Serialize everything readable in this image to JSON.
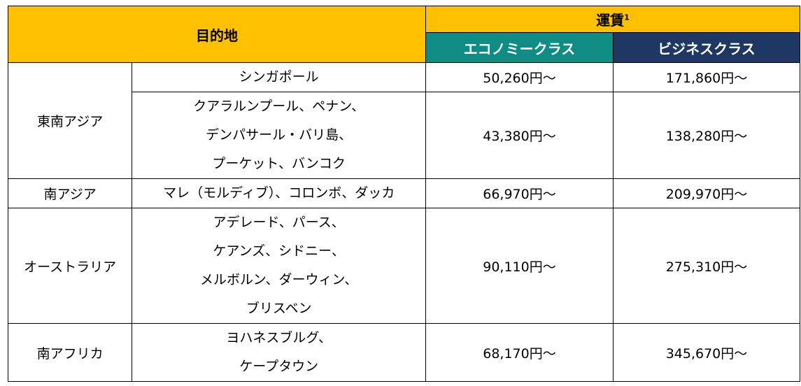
{
  "header": {
    "destination": "目的地",
    "fare": "運賃",
    "fare_note": "1",
    "economy": "エコノミークラス",
    "business": "ビジネスクラス"
  },
  "rows": [
    {
      "region": "東南アジア",
      "city_lines": [
        "シンガポール"
      ],
      "economy": "50,260円～",
      "business": "171,860円～"
    },
    {
      "region": "",
      "city_lines": [
        "クアラルンプール、ペナン、",
        "デンパサール・バリ島、",
        "プーケット、バンコク"
      ],
      "economy": "43,380円～",
      "business": "138,280円～"
    },
    {
      "region": "南アジア",
      "city_lines": [
        "マレ（モルディブ）、コロンボ、ダッカ"
      ],
      "economy": "66,970円～",
      "business": "209,970円～"
    },
    {
      "region": "オーストラリア",
      "city_lines": [
        "アデレード、パース、",
        "ケアンズ、シドニー、",
        "メルボルン、ダーウィン、",
        "ブリスベン"
      ],
      "economy": "90,110円～",
      "business": "275,310円～"
    },
    {
      "region": "南アフリカ",
      "city_lines": [
        "ヨハネスブルグ、",
        "ケープタウン"
      ],
      "economy": "68,170円～",
      "business": "345,670円～"
    }
  ],
  "colors": {
    "header_gold": "#ffc000",
    "economy_teal": "#0f8c84",
    "business_navy": "#1f3763"
  }
}
